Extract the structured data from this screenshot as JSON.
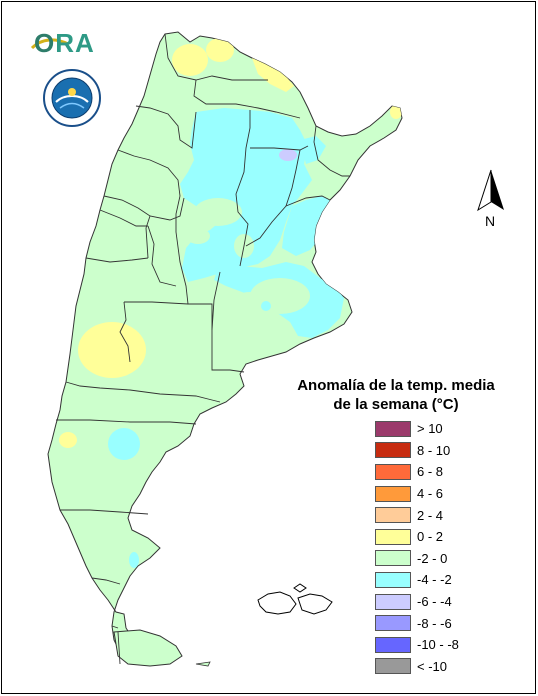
{
  "logo": {
    "o": "O",
    "ra": "RA"
  },
  "compass": {
    "label": "N"
  },
  "legend": {
    "title_line1": "Anomalía de la temp. media",
    "title_line2": "de la semana (°C)",
    "items": [
      {
        "label": "> 10",
        "color": "#9b3a6b"
      },
      {
        "label": "8 - 10",
        "color": "#c72c10"
      },
      {
        "label": "6 - 8",
        "color": "#ff6a3a"
      },
      {
        "label": "4 - 6",
        "color": "#ff9a3a"
      },
      {
        "label": "2 - 4",
        "color": "#ffcc99"
      },
      {
        "label": "0 - 2",
        "color": "#ffff99"
      },
      {
        "label": "-2 - 0",
        "color": "#ccffcc"
      },
      {
        "label": "-4 - -2",
        "color": "#99ffff"
      },
      {
        "label": "-6 - -4",
        "color": "#ccccff"
      },
      {
        "label": "-8 - -6",
        "color": "#9999ff"
      },
      {
        "label": "-10 - -8",
        "color": "#6666ff"
      },
      {
        "label": "< -10",
        "color": "#999999"
      }
    ]
  },
  "map": {
    "base_color": "#ccffcc",
    "cold_color": "#99ffff",
    "warm_color": "#ffff99",
    "purple_color": "#ccccff",
    "boundary_color": "#333333"
  }
}
